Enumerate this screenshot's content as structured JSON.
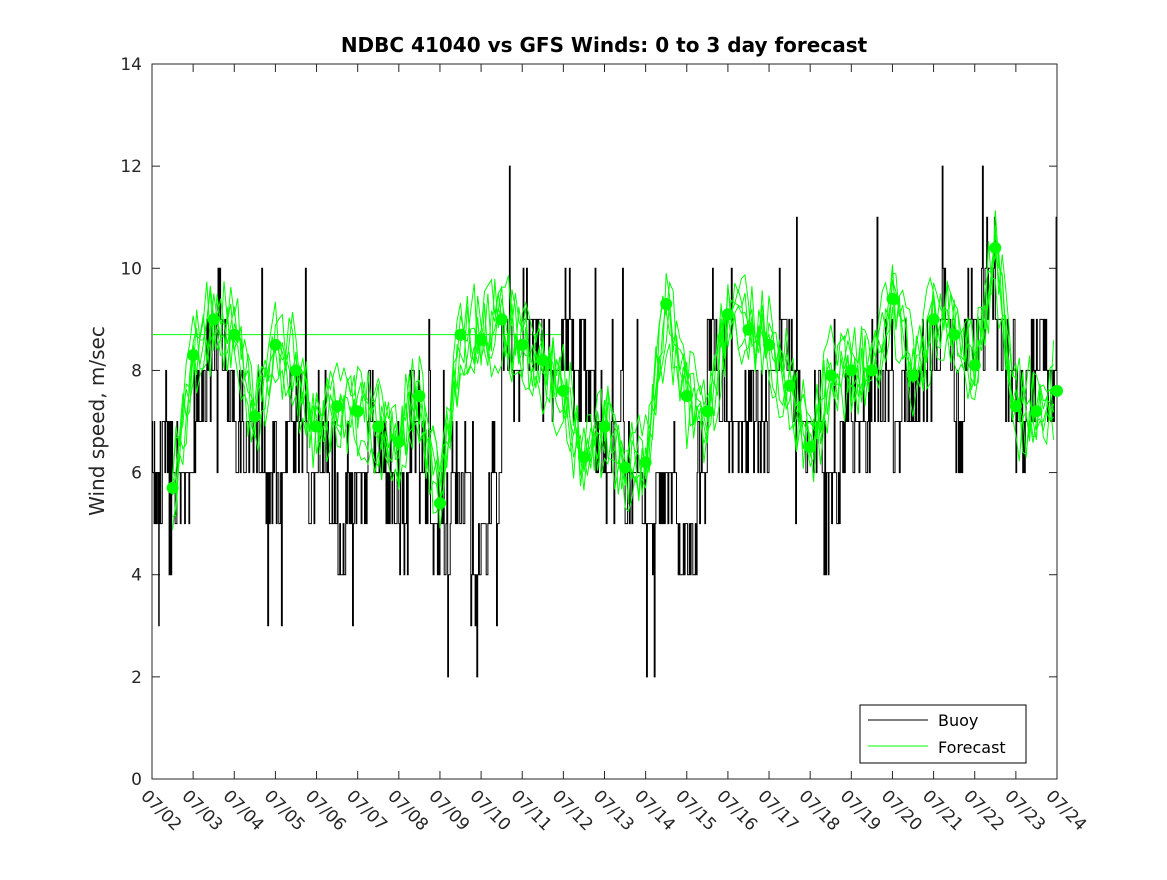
{
  "chart_data": {
    "type": "line",
    "title": "NDBC 41040 vs GFS Winds: 0 to 3 day forecast",
    "xlabel": "",
    "ylabel": "Wind speed, m/sec",
    "xlim": [
      "07/02",
      "07/24"
    ],
    "ylim": [
      0,
      14
    ],
    "x_tick_labels": [
      "07/02",
      "07/03",
      "07/04",
      "07/05",
      "07/06",
      "07/07",
      "07/08",
      "07/09",
      "07/10",
      "07/11",
      "07/12",
      "07/13",
      "07/14",
      "07/15",
      "07/16",
      "07/17",
      "07/18",
      "07/19",
      "07/20",
      "07/21",
      "07/22",
      "07/23",
      "07/24"
    ],
    "y_tick_labels": [
      "0",
      "2",
      "4",
      "6",
      "8",
      "10",
      "12",
      "14"
    ],
    "grid": false,
    "legend_position": "bottom-right",
    "colors": {
      "buoy": "#000000",
      "forecast": "#00ff00"
    },
    "legend": [
      {
        "label": "Buoy",
        "color": "#000000"
      },
      {
        "label": "Forecast",
        "color": "#00ff00"
      }
    ],
    "reference_line": {
      "from": "07/02",
      "to": "07/12",
      "value": 8.7,
      "color": "#00ff00"
    },
    "buoy_observations_approx": {
      "x_days_from_0702": [
        0.0,
        0.1,
        0.25,
        0.5,
        0.75,
        1.0,
        1.25,
        1.5,
        1.75,
        2.0,
        2.25,
        2.5,
        2.75,
        3.0,
        3.25,
        3.5,
        3.75,
        4.0,
        4.25,
        4.5,
        4.75,
        5.0,
        5.25,
        5.5,
        5.75,
        6.0,
        6.25,
        6.5,
        6.75,
        7.0,
        7.25,
        7.5,
        7.75,
        8.0,
        8.25,
        8.5,
        8.75,
        9.0,
        9.25,
        9.5,
        9.75,
        10.0,
        10.25,
        10.5,
        10.75,
        11.0,
        11.25,
        11.5,
        11.75,
        12.0,
        12.25,
        12.5,
        12.75,
        13.0,
        13.25,
        13.5,
        13.75,
        14.0,
        14.25,
        14.5,
        14.75,
        15.0,
        15.25,
        15.5,
        15.75,
        16.0,
        16.25,
        16.5,
        16.75,
        17.0,
        17.25,
        17.5,
        17.75,
        18.0,
        18.25,
        18.5,
        18.75,
        19.0,
        19.25,
        19.5,
        19.75,
        20.0,
        20.25,
        20.5,
        20.75,
        21.0,
        21.25,
        21.5,
        21.75,
        22.0
      ],
      "values": [
        6,
        6,
        7,
        6,
        6,
        7,
        8,
        9,
        8,
        7,
        7,
        7,
        6,
        6,
        7,
        7,
        6,
        7,
        6,
        5,
        6,
        6,
        7,
        6,
        6,
        5,
        7,
        6,
        5,
        5,
        6,
        6,
        4,
        5,
        6,
        9,
        8,
        9,
        9,
        8,
        8,
        9,
        8,
        8,
        7,
        6,
        7,
        6,
        6,
        5,
        6,
        6,
        5,
        5,
        6,
        9,
        8,
        7,
        7,
        7,
        7,
        8,
        9,
        8,
        7,
        7,
        7,
        6,
        7,
        7,
        7,
        8,
        8,
        7,
        8,
        8,
        8,
        9,
        9,
        7,
        9,
        9,
        10,
        9,
        8,
        7,
        8,
        9,
        8,
        8
      ]
    },
    "forecast_points_approx": {
      "x_days_from_0702": [
        0.5,
        1.0,
        1.5,
        2.0,
        2.5,
        3.0,
        3.5,
        4.0,
        4.5,
        5.0,
        5.5,
        6.0,
        6.5,
        7.0,
        7.5,
        8.0,
        8.5,
        9.0,
        9.5,
        10.0,
        10.5,
        11.0,
        11.5,
        12.0,
        12.5,
        13.0,
        13.5,
        14.0,
        14.5,
        15.0,
        15.5,
        16.0,
        16.5,
        17.0,
        17.5,
        18.0,
        18.5,
        19.0,
        19.5,
        20.0,
        20.5,
        21.0,
        21.5,
        22.0
      ],
      "values": [
        5.7,
        8.3,
        9.0,
        8.7,
        7.1,
        8.5,
        8.0,
        6.9,
        7.3,
        7.2,
        6.9,
        6.6,
        7.5,
        5.4,
        8.7,
        8.6,
        9.0,
        8.5,
        8.2,
        7.6,
        6.3,
        6.9,
        6.1,
        6.2,
        9.3,
        7.5,
        7.2,
        9.1,
        8.8,
        8.5,
        7.7,
        6.5,
        7.9,
        8.0,
        8.0,
        9.4,
        7.9,
        9.0,
        8.7,
        8.1,
        10.4,
        7.3,
        7.2,
        7.6
      ]
    },
    "series": [
      {
        "name": "Buoy"
      },
      {
        "name": "Forecast"
      }
    ]
  }
}
